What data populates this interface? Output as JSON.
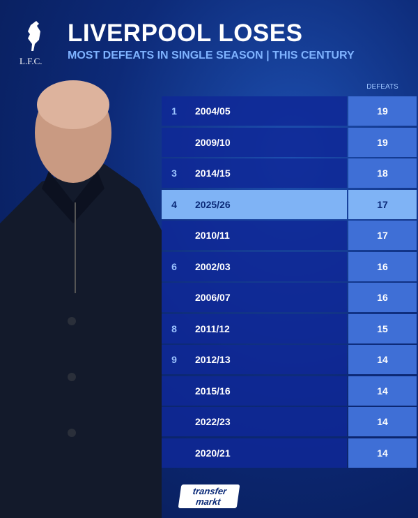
{
  "header": {
    "logo": "L.F.C.",
    "title": "LIVERPOOL LOSES",
    "subtitle": "MOST DEFEATS IN SINGLE SEASON | THIS CENTURY"
  },
  "table": {
    "columns": [
      "DEFEATS"
    ],
    "rows": [
      {
        "rank": 1,
        "season": "2004/05",
        "defeats": 19
      },
      {
        "rank": null,
        "season": "2009/10",
        "defeats": 19
      },
      {
        "rank": 3,
        "season": "2014/15",
        "defeats": 18
      },
      {
        "rank": 4,
        "season": "2025/26",
        "defeats": 17
      },
      {
        "rank": null,
        "season": "2010/11",
        "defeats": 17
      },
      {
        "rank": 6,
        "season": "2002/03",
        "defeats": 16
      },
      {
        "rank": null,
        "season": "2006/07",
        "defeats": 16
      },
      {
        "rank": 8,
        "season": "2011/12",
        "defeats": 15
      },
      {
        "rank": 9,
        "season": "2012/13",
        "defeats": 14
      },
      {
        "rank": null,
        "season": "2015/16",
        "defeats": 14
      },
      {
        "rank": null,
        "season": "2022/23",
        "defeats": 14
      },
      {
        "rank": null,
        "season": "2020/21",
        "defeats": 14
      }
    ]
  },
  "footer": {
    "brand": [
      "transfer",
      "markt"
    ]
  }
}
